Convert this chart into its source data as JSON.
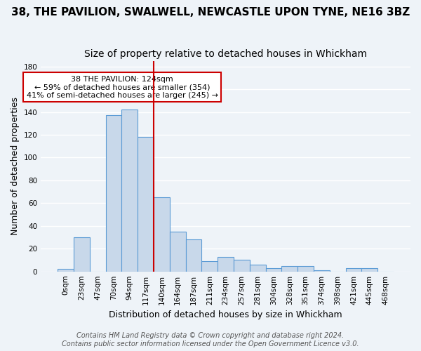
{
  "title": "38, THE PAVILION, SWALWELL, NEWCASTLE UPON TYNE, NE16 3BZ",
  "subtitle": "Size of property relative to detached houses in Whickham",
  "xlabel": "Distribution of detached houses by size in Whickham",
  "ylabel": "Number of detached properties",
  "bar_labels": [
    "0sqm",
    "23sqm",
    "47sqm",
    "70sqm",
    "94sqm",
    "117sqm",
    "140sqm",
    "164sqm",
    "187sqm",
    "211sqm",
    "234sqm",
    "257sqm",
    "281sqm",
    "304sqm",
    "328sqm",
    "351sqm",
    "374sqm",
    "398sqm",
    "421sqm",
    "445sqm",
    "468sqm"
  ],
  "bar_heights": [
    2,
    30,
    0,
    137,
    142,
    118,
    65,
    35,
    28,
    9,
    13,
    10,
    6,
    3,
    5,
    5,
    1,
    0,
    3,
    3,
    0
  ],
  "bar_color": "#c8d8ea",
  "bar_edge_color": "#5b9bd5",
  "vline_x": 5.5,
  "vline_color": "#cc0000",
  "annotation_text": "38 THE PAVILION: 124sqm\n← 59% of detached houses are smaller (354)\n41% of semi-detached houses are larger (245) →",
  "annotation_box_color": "white",
  "annotation_box_edge": "#cc0000",
  "ylim": [
    0,
    185
  ],
  "yticks": [
    0,
    20,
    40,
    60,
    80,
    100,
    120,
    140,
    160,
    180
  ],
  "footer": "Contains HM Land Registry data © Crown copyright and database right 2024.\nContains public sector information licensed under the Open Government Licence v3.0.",
  "background_color": "#eef3f8",
  "grid_color": "white",
  "title_fontsize": 11,
  "subtitle_fontsize": 10,
  "axis_label_fontsize": 9,
  "tick_fontsize": 7.5,
  "annotation_fontsize": 8,
  "footer_fontsize": 7
}
